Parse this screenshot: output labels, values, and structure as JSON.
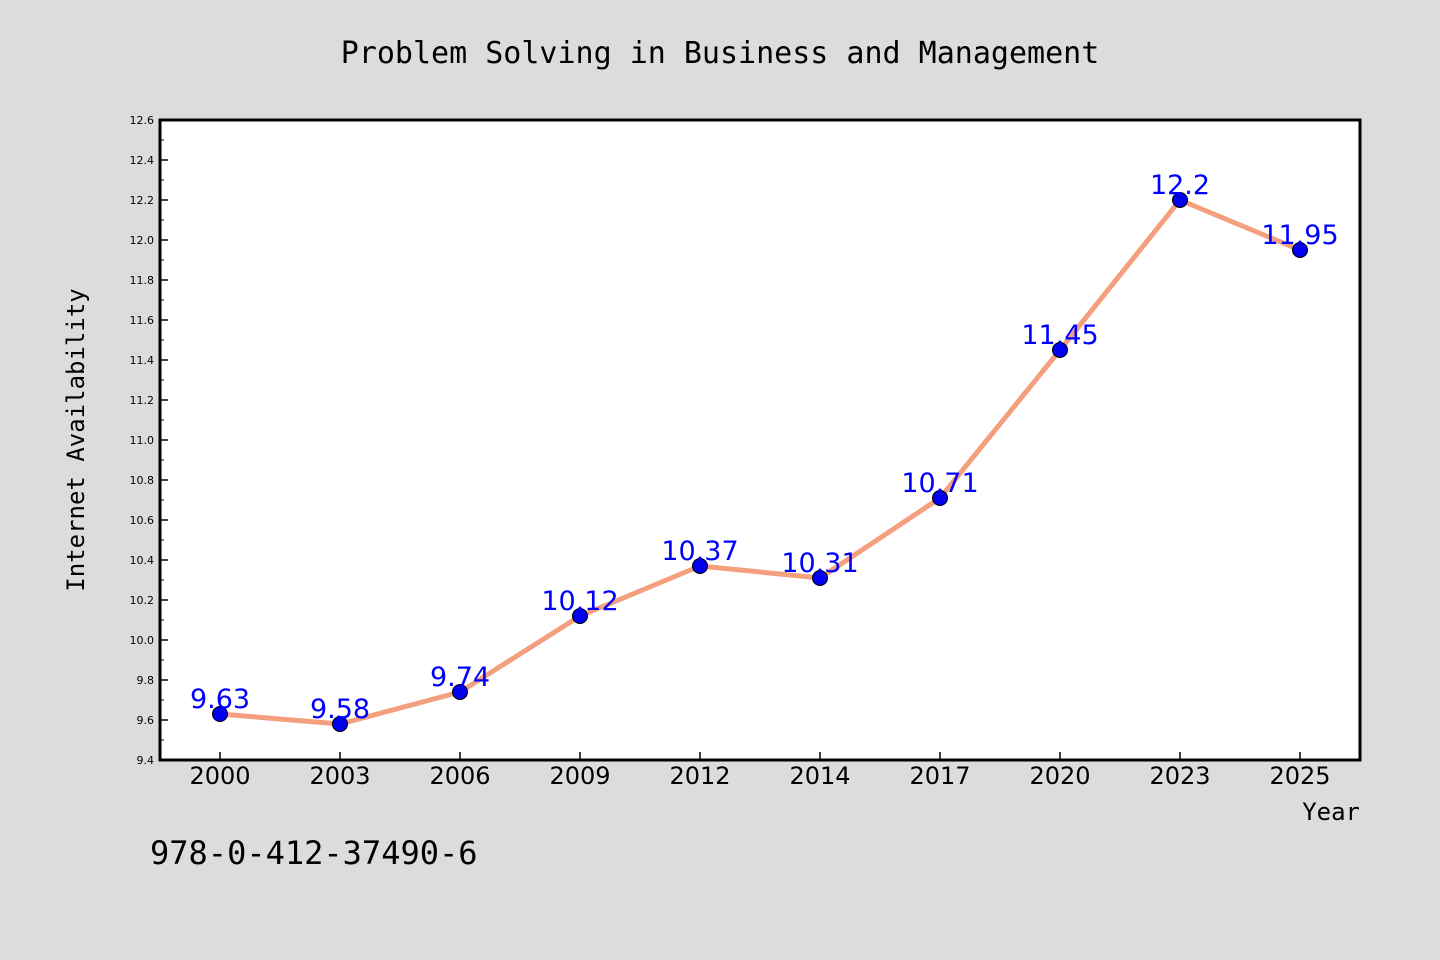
{
  "chart_data": {
    "type": "line",
    "title": "Problem Solving in Business and Management",
    "xlabel": "Year",
    "ylabel": "Internet Availability",
    "categories": [
      "2000",
      "2003",
      "2006",
      "2009",
      "2012",
      "2014",
      "2017",
      "2020",
      "2023",
      "2025"
    ],
    "series": [
      {
        "values": [
          9.63,
          9.58,
          9.74,
          10.12,
          10.37,
          10.31,
          10.71,
          11.45,
          12.2,
          11.95
        ],
        "labels": [
          "9.63",
          "9.58",
          "9.74",
          "10.12",
          "10.37",
          "10.31",
          "10.71",
          "11.45",
          "12.2",
          "11.95"
        ],
        "line_color": "#f4a07e",
        "marker_color": "#0000ee",
        "label_color": "#0000ff"
      }
    ],
    "ylim": [
      9.4,
      12.6
    ],
    "yticks": [
      "9.4",
      "9.6",
      "9.8",
      "10.0",
      "10.2",
      "10.4",
      "10.6",
      "10.8",
      "11.0",
      "11.2",
      "11.4",
      "11.6",
      "11.8",
      "12.0",
      "12.2",
      "12.4",
      "12.6"
    ],
    "grid": false,
    "legend": "none",
    "background": "#dcdcdc",
    "plot_background": "#ffffff"
  },
  "footer": {
    "isbn": "978-0-412-37490-6"
  }
}
